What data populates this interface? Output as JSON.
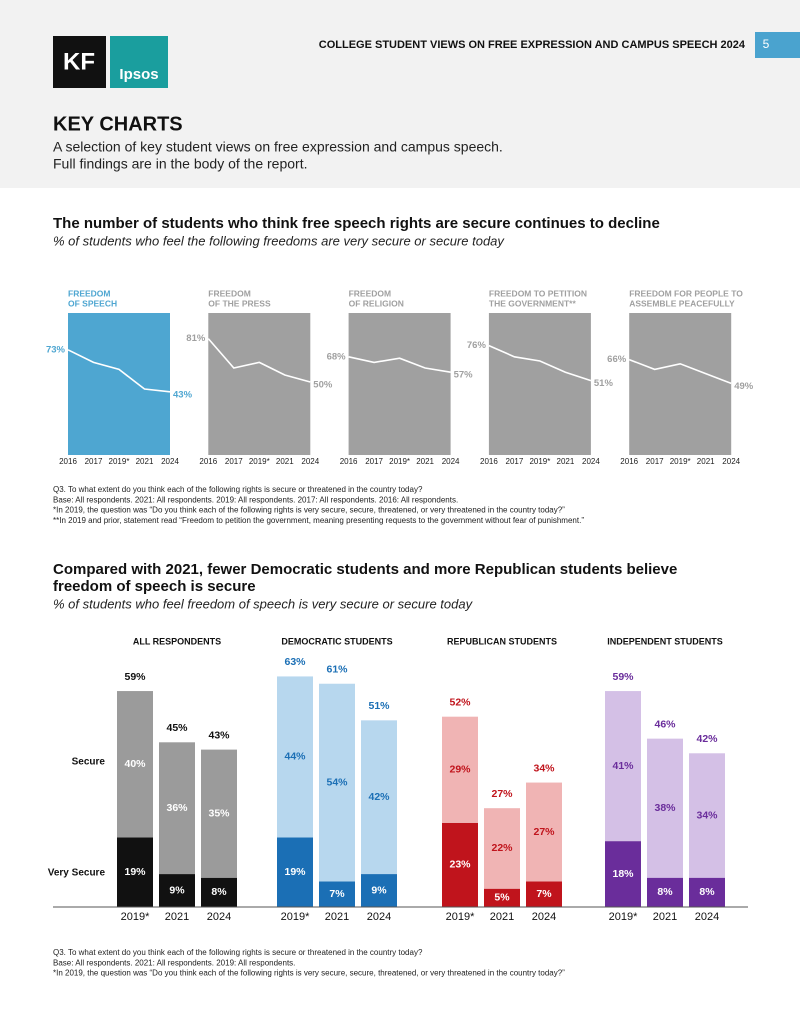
{
  "header": {
    "title": "COLLEGE STUDENT VIEWS ON FREE EXPRESSION AND CAMPUS SPEECH 2024",
    "page": "5",
    "logos": [
      "KF",
      "Ipsos"
    ]
  },
  "section": {
    "title": "KEY CHARTS",
    "intro": [
      "A selection of key student views on free expression and campus speech.",
      "Full findings are in the body of the report."
    ]
  },
  "chart_data": [
    {
      "type": "line",
      "title": "The number of students who think free speech rights are secure continues to decline",
      "subtitle": "% of students who feel the following freedoms are very secure or secure today",
      "categories": [
        "2016",
        "2017",
        "2019*",
        "2021",
        "2024"
      ],
      "series": [
        {
          "name": [
            "FREEDOM",
            "OF SPEECH"
          ],
          "color": "#4ea6d1",
          "values": [
            73,
            64,
            59,
            45,
            43
          ],
          "value_labels": [
            "73%",
            null,
            null,
            null,
            "43%"
          ]
        },
        {
          "name": [
            "FREEDOM",
            "OF THE PRESS"
          ],
          "color": "#a0a0a0",
          "values": [
            81,
            60,
            64,
            55,
            50
          ],
          "value_labels": [
            "81%",
            null,
            null,
            null,
            "50%"
          ]
        },
        {
          "name": [
            "FREEDOM",
            "OF RELIGION"
          ],
          "color": "#a0a0a0",
          "values": [
            68,
            64,
            67,
            60,
            57
          ],
          "value_labels": [
            "68%",
            null,
            null,
            null,
            "57%"
          ]
        },
        {
          "name": [
            "FREEDOM TO PETITION",
            "THE GOVERNMENT**"
          ],
          "color": "#a0a0a0",
          "values": [
            76,
            68,
            65,
            57,
            51
          ],
          "value_labels": [
            "76%",
            null,
            null,
            null,
            "51%"
          ]
        },
        {
          "name": [
            "FREEDOM FOR PEOPLE TO",
            "ASSEMBLE PEACEFULLY"
          ],
          "color": "#a0a0a0",
          "values": [
            66,
            59,
            63,
            56,
            49
          ],
          "value_labels": [
            "66%",
            null,
            null,
            null,
            "49%"
          ]
        }
      ],
      "notes": [
        "Q3. To what extent do you think each of the following rights is secure or threatened in the country today?",
        "Base: All respondents. 2021: All respondents. 2019: All respondents. 2017: All respondents. 2016: All respondents.",
        "*In 2019, the question was “Do you think each of the following rights is very secure, secure, threatened, or very threatened in the country today?”",
        "**In 2019 and prior, statement read “Freedom to petition the government, meaning presenting requests to the government without fear of punishment.”"
      ]
    },
    {
      "type": "stacked-bar",
      "title": [
        "Compared with 2021, fewer Democratic students and more Republican students believe",
        "freedom of speech is secure"
      ],
      "subtitle": "% of students who feel freedom of speech is very secure or secure today",
      "layers": [
        "Very Secure",
        "Secure"
      ],
      "categories": [
        "2019*",
        "2021",
        "2024"
      ],
      "groups": [
        {
          "name": "ALL RESPONDENTS",
          "text_color": "#111111",
          "series": [
            {
              "color": "#111111",
              "label_color": "#ffffff",
              "values": [
                19,
                9,
                8
              ],
              "value_labels": [
                "19%",
                "9%",
                "8%"
              ]
            },
            {
              "color": "#9b9b9b",
              "label_color": "#ffffff",
              "values": [
                40,
                36,
                35
              ],
              "value_labels": [
                "40%",
                "36%",
                "35%"
              ]
            }
          ],
          "totals": [
            59,
            45,
            43
          ],
          "total_labels": [
            "59%",
            "45%",
            "43%"
          ]
        },
        {
          "name": "DEMOCRATIC STUDENTS",
          "text_color": "#1b6fb5",
          "series": [
            {
              "color": "#1b6fb5",
              "label_color": "#ffffff",
              "values": [
                19,
                7,
                9
              ],
              "value_labels": [
                "19%",
                "7%",
                "9%"
              ]
            },
            {
              "color": "#b7d7ee",
              "label_color": "#1b6fb5",
              "values": [
                44,
                54,
                42
              ],
              "value_labels": [
                "44%",
                "54%",
                "42%"
              ]
            }
          ],
          "totals": [
            63,
            61,
            51
          ],
          "total_labels": [
            "63%",
            "61%",
            "51%"
          ]
        },
        {
          "name": "REPUBLICAN STUDENTS",
          "text_color": "#c0141c",
          "series": [
            {
              "color": "#c0141c",
              "label_color": "#ffffff",
              "values": [
                23,
                5,
                7
              ],
              "value_labels": [
                "23%",
                "5%",
                "7%"
              ]
            },
            {
              "color": "#f0b4b4",
              "label_color": "#c0141c",
              "values": [
                29,
                22,
                27
              ],
              "value_labels": [
                "29%",
                "22%",
                "27%"
              ]
            }
          ],
          "totals": [
            52,
            27,
            34
          ],
          "total_labels": [
            "52%",
            "27%",
            "34%"
          ]
        },
        {
          "name": "INDEPENDENT STUDENTS",
          "text_color": "#6a2d9b",
          "series": [
            {
              "color": "#6a2d9b",
              "label_color": "#ffffff",
              "values": [
                18,
                8,
                8
              ],
              "value_labels": [
                "18%",
                "8%",
                "8%"
              ]
            },
            {
              "color": "#d4c0e6",
              "label_color": "#6a2d9b",
              "values": [
                41,
                38,
                34
              ],
              "value_labels": [
                "41%",
                "38%",
                "34%"
              ]
            }
          ],
          "totals": [
            59,
            46,
            42
          ],
          "total_labels": [
            "59%",
            "46%",
            "42%"
          ]
        }
      ],
      "notes": [
        "Q3. To what extent do you think each of the following rights is secure or threatened in the country today?",
        "Base: All respondents. 2021: All respondents. 2019: All respondents.",
        "*In 2019, the question was “Do you think each of the following rights is very secure, secure, threatened, or very threatened in the country today?”"
      ]
    }
  ]
}
